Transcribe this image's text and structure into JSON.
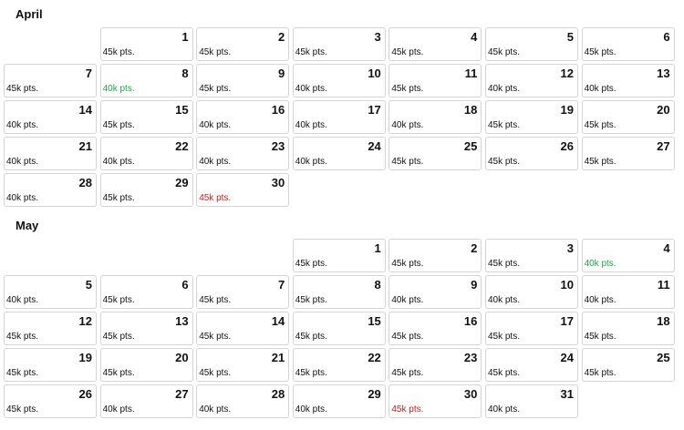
{
  "colors": {
    "normal": "#111111",
    "low": "#1aa84a",
    "high": "#cc1a1a"
  },
  "months": [
    {
      "name": "April",
      "offset": 1,
      "days": [
        {
          "day": "1",
          "pts": "45k pts.",
          "status": "normal"
        },
        {
          "day": "2",
          "pts": "45k pts.",
          "status": "normal"
        },
        {
          "day": "3",
          "pts": "45k pts.",
          "status": "normal"
        },
        {
          "day": "4",
          "pts": "45k pts.",
          "status": "normal"
        },
        {
          "day": "5",
          "pts": "45k pts.",
          "status": "normal"
        },
        {
          "day": "6",
          "pts": "45k pts.",
          "status": "normal"
        },
        {
          "day": "7",
          "pts": "45k pts.",
          "status": "normal"
        },
        {
          "day": "8",
          "pts": "40k pts.",
          "status": "low"
        },
        {
          "day": "9",
          "pts": "45k pts.",
          "status": "normal"
        },
        {
          "day": "10",
          "pts": "40k pts.",
          "status": "normal"
        },
        {
          "day": "11",
          "pts": "45k pts.",
          "status": "normal"
        },
        {
          "day": "12",
          "pts": "40k pts.",
          "status": "normal"
        },
        {
          "day": "13",
          "pts": "40k pts.",
          "status": "normal"
        },
        {
          "day": "14",
          "pts": "40k pts.",
          "status": "normal"
        },
        {
          "day": "15",
          "pts": "45k pts.",
          "status": "normal"
        },
        {
          "day": "16",
          "pts": "40k pts.",
          "status": "normal"
        },
        {
          "day": "17",
          "pts": "40k pts.",
          "status": "normal"
        },
        {
          "day": "18",
          "pts": "40k pts.",
          "status": "normal"
        },
        {
          "day": "19",
          "pts": "45k pts.",
          "status": "normal"
        },
        {
          "day": "20",
          "pts": "45k pts.",
          "status": "normal"
        },
        {
          "day": "21",
          "pts": "40k pts.",
          "status": "normal"
        },
        {
          "day": "22",
          "pts": "40k pts.",
          "status": "normal"
        },
        {
          "day": "23",
          "pts": "40k pts.",
          "status": "normal"
        },
        {
          "day": "24",
          "pts": "40k pts.",
          "status": "normal"
        },
        {
          "day": "25",
          "pts": "45k pts.",
          "status": "normal"
        },
        {
          "day": "26",
          "pts": "45k pts.",
          "status": "normal"
        },
        {
          "day": "27",
          "pts": "45k pts.",
          "status": "normal"
        },
        {
          "day": "28",
          "pts": "40k pts.",
          "status": "normal"
        },
        {
          "day": "29",
          "pts": "45k pts.",
          "status": "normal"
        },
        {
          "day": "30",
          "pts": "45k pts.",
          "status": "high"
        }
      ]
    },
    {
      "name": "May",
      "offset": 3,
      "days": [
        {
          "day": "1",
          "pts": "45k pts.",
          "status": "normal"
        },
        {
          "day": "2",
          "pts": "45k pts.",
          "status": "normal"
        },
        {
          "day": "3",
          "pts": "45k pts.",
          "status": "normal"
        },
        {
          "day": "4",
          "pts": "40k pts.",
          "status": "low"
        },
        {
          "day": "5",
          "pts": "40k pts.",
          "status": "normal"
        },
        {
          "day": "6",
          "pts": "45k pts.",
          "status": "normal"
        },
        {
          "day": "7",
          "pts": "45k pts.",
          "status": "normal"
        },
        {
          "day": "8",
          "pts": "45k pts.",
          "status": "normal"
        },
        {
          "day": "9",
          "pts": "40k pts.",
          "status": "normal"
        },
        {
          "day": "10",
          "pts": "40k pts.",
          "status": "normal"
        },
        {
          "day": "11",
          "pts": "40k pts.",
          "status": "normal"
        },
        {
          "day": "12",
          "pts": "45k pts.",
          "status": "normal"
        },
        {
          "day": "13",
          "pts": "45k pts.",
          "status": "normal"
        },
        {
          "day": "14",
          "pts": "45k pts.",
          "status": "normal"
        },
        {
          "day": "15",
          "pts": "45k pts.",
          "status": "normal"
        },
        {
          "day": "16",
          "pts": "45k pts.",
          "status": "normal"
        },
        {
          "day": "17",
          "pts": "45k pts.",
          "status": "normal"
        },
        {
          "day": "18",
          "pts": "45k pts.",
          "status": "normal"
        },
        {
          "day": "19",
          "pts": "45k pts.",
          "status": "normal"
        },
        {
          "day": "20",
          "pts": "45k pts.",
          "status": "normal"
        },
        {
          "day": "21",
          "pts": "45k pts.",
          "status": "normal"
        },
        {
          "day": "22",
          "pts": "45k pts.",
          "status": "normal"
        },
        {
          "day": "23",
          "pts": "45k pts.",
          "status": "normal"
        },
        {
          "day": "24",
          "pts": "45k pts.",
          "status": "normal"
        },
        {
          "day": "25",
          "pts": "45k pts.",
          "status": "normal"
        },
        {
          "day": "26",
          "pts": "45k pts.",
          "status": "normal"
        },
        {
          "day": "27",
          "pts": "40k pts.",
          "status": "normal"
        },
        {
          "day": "28",
          "pts": "40k pts.",
          "status": "normal"
        },
        {
          "day": "29",
          "pts": "40k pts.",
          "status": "normal"
        },
        {
          "day": "30",
          "pts": "45k pts.",
          "status": "high"
        },
        {
          "day": "31",
          "pts": "40k pts.",
          "status": "normal"
        }
      ]
    }
  ]
}
